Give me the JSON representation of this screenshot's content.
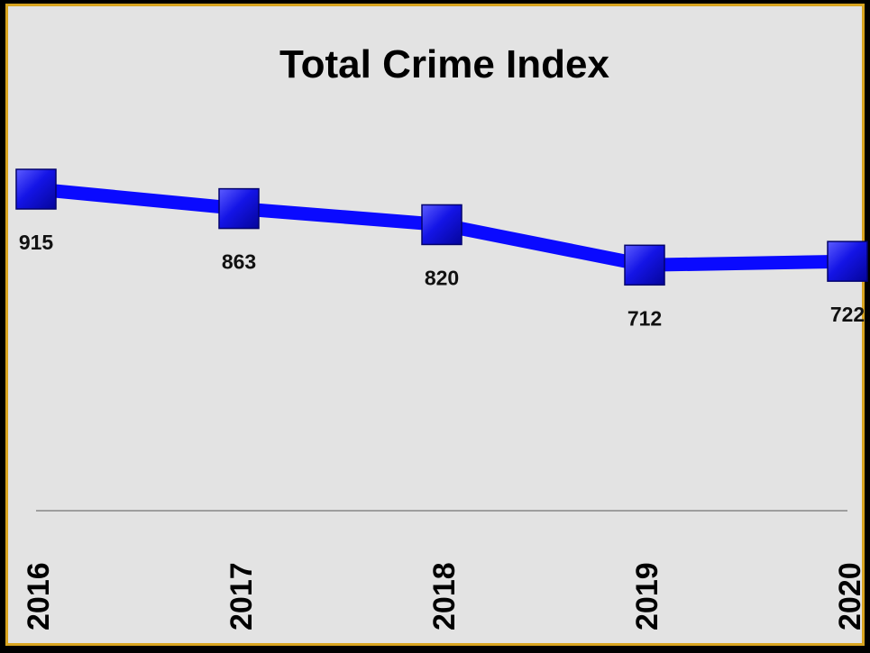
{
  "chart_data": {
    "type": "line",
    "title": "Total Crime Index",
    "categories": [
      "2016",
      "2017",
      "2018",
      "2019",
      "2020"
    ],
    "series": [
      {
        "values": [
          915,
          863,
          820,
          712,
          722
        ]
      }
    ],
    "data_labels": [
      "915",
      "863",
      "820",
      "712",
      "722"
    ],
    "xlabel": "",
    "ylabel": "",
    "ylim": [
      0,
      1000
    ],
    "grid": false,
    "legend": "none",
    "colors": {
      "line": "#0a0aff",
      "marker": "#1414e6",
      "background": "#e3e3e3",
      "border": "#d9a520",
      "axis": "#888888"
    }
  }
}
